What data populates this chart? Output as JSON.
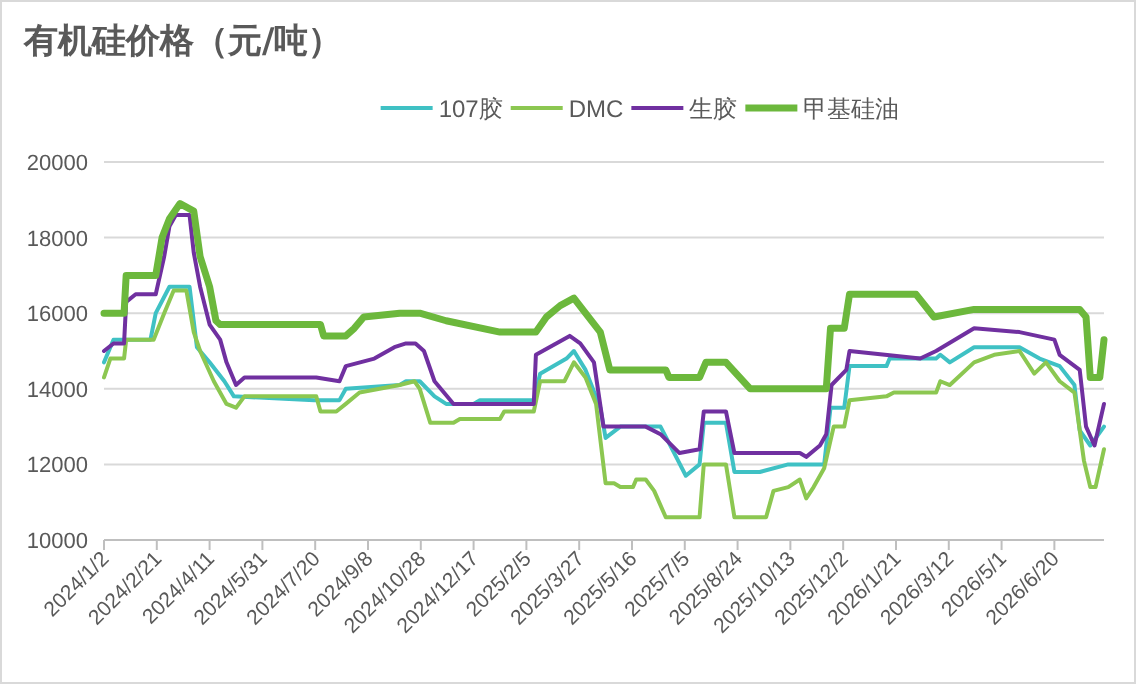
{
  "chart_data": {
    "type": "line",
    "title": "有机硅价格（元/吨）",
    "legend": "top",
    "grid": "y",
    "line_style": "solid",
    "marker": "none",
    "xlim": [
      "2024-01-02",
      "2026-08-06"
    ],
    "xticks": [
      {
        "value": "2024-01-02",
        "label": "2024/1/2"
      },
      {
        "value": "2024-02-21",
        "label": "2024/2/21"
      },
      {
        "value": "2024-04-11",
        "label": "2024/4/11"
      },
      {
        "value": "2024-05-31",
        "label": "2024/5/31"
      },
      {
        "value": "2024-07-20",
        "label": "2024/7/20"
      },
      {
        "value": "2024-09-08",
        "label": "2024/9/8"
      },
      {
        "value": "2024-10-28",
        "label": "2024/10/28"
      },
      {
        "value": "2024-12-17",
        "label": "2024/12/17"
      },
      {
        "value": "2025-02-05",
        "label": "2025/2/5"
      },
      {
        "value": "2025-03-27",
        "label": "2025/3/27"
      },
      {
        "value": "2025-05-16",
        "label": "2025/5/16"
      },
      {
        "value": "2025-07-05",
        "label": "2025/7/5"
      },
      {
        "value": "2025-08-24",
        "label": "2025/8/24"
      },
      {
        "value": "2025-10-13",
        "label": "2025/10/13"
      },
      {
        "value": "2025-12-02",
        "label": "2025/12/2"
      },
      {
        "value": "2026-01-21",
        "label": "2026/1/21"
      },
      {
        "value": "2026-03-12",
        "label": "2026/3/12"
      },
      {
        "value": "2026-05-01",
        "label": "2026/5/1"
      },
      {
        "value": "2026-06-20",
        "label": "2026/6/20"
      }
    ],
    "ylim": [
      10000,
      20000
    ],
    "yticks": [
      10000,
      12000,
      14000,
      16000,
      18000,
      20000
    ],
    "series": [
      {
        "name": "107胶",
        "color": "#3fc1c4",
        "x": [
          "2024-01-02",
          "2024-01-11",
          "2024-02-15",
          "2024-02-20",
          "2024-03-04",
          "2024-03-23",
          "2024-03-30",
          "2024-04-11",
          "2024-04-25",
          "2024-05-04",
          "2024-07-19",
          "2024-08-12",
          "2024-08-18",
          "2024-10-08",
          "2024-10-14",
          "2024-10-27",
          "2024-11-10",
          "2024-11-21",
          "2024-12-17",
          "2024-12-23",
          "2025-02-12",
          "2025-02-18",
          "2025-03-15",
          "2025-03-22",
          "2025-04-02",
          "2025-04-16",
          "2025-04-21",
          "2025-05-05",
          "2025-06-12",
          "2025-06-25",
          "2025-07-06",
          "2025-07-19",
          "2025-07-23",
          "2025-08-13",
          "2025-08-21",
          "2025-09-14",
          "2025-10-11",
          "2025-11-14",
          "2025-11-20",
          "2025-12-03",
          "2025-12-08",
          "2026-01-12",
          "2026-01-15",
          "2026-02-28",
          "2026-03-04",
          "2026-03-13",
          "2026-04-05",
          "2026-05-18",
          "2026-06-06",
          "2026-06-25",
          "2026-07-09",
          "2026-07-14",
          "2026-07-24",
          "2026-08-06"
        ],
        "values": [
          14700,
          15300,
          15300,
          16000,
          16700,
          16700,
          15100,
          14700,
          14200,
          13800,
          13700,
          13700,
          14000,
          14100,
          14200,
          14200,
          13800,
          13600,
          13600,
          13700,
          13700,
          14400,
          14800,
          15000,
          14500,
          13500,
          12700,
          13000,
          13000,
          12300,
          11700,
          12000,
          13100,
          13100,
          11800,
          11800,
          12000,
          12000,
          13500,
          13500,
          14600,
          14600,
          14800,
          14800,
          14900,
          14700,
          15100,
          15100,
          14800,
          14600,
          14100,
          12900,
          12500,
          13000
        ]
      },
      {
        "name": "DMC",
        "color": "#8cc751",
        "x": [
          "2024-01-02",
          "2024-01-08",
          "2024-01-21",
          "2024-01-23",
          "2024-02-18",
          "2024-02-28",
          "2024-03-08",
          "2024-03-20",
          "2024-03-27",
          "2024-04-02",
          "2024-04-15",
          "2024-04-27",
          "2024-05-06",
          "2024-05-14",
          "2024-07-21",
          "2024-07-25",
          "2024-08-09",
          "2024-08-18",
          "2024-08-31",
          "2024-10-08",
          "2024-10-22",
          "2024-10-27",
          "2024-11-06",
          "2024-11-28",
          "2024-12-04",
          "2025-01-11",
          "2025-01-15",
          "2025-02-12",
          "2025-02-18",
          "2025-03-13",
          "2025-03-22",
          "2025-04-02",
          "2025-04-12",
          "2025-04-21",
          "2025-04-29",
          "2025-05-05",
          "2025-05-17",
          "2025-05-20",
          "2025-05-29",
          "2025-06-06",
          "2025-06-17",
          "2025-07-19",
          "2025-07-23",
          "2025-08-13",
          "2025-08-21",
          "2025-09-20",
          "2025-09-27",
          "2025-10-11",
          "2025-10-22",
          "2025-10-28",
          "2025-11-04",
          "2025-11-14",
          "2025-11-23",
          "2025-12-03",
          "2025-12-08",
          "2026-01-12",
          "2026-01-19",
          "2026-02-28",
          "2026-03-04",
          "2026-03-13",
          "2026-04-05",
          "2026-04-24",
          "2026-05-18",
          "2026-06-01",
          "2026-06-12",
          "2026-06-25",
          "2026-07-09",
          "2026-07-18",
          "2026-07-24",
          "2026-07-29",
          "2026-08-06"
        ],
        "values": [
          14300,
          14800,
          14800,
          15300,
          15300,
          16000,
          16600,
          16600,
          15500,
          15000,
          14200,
          13600,
          13500,
          13800,
          13800,
          13400,
          13400,
          13600,
          13900,
          14100,
          14200,
          14000,
          13100,
          13100,
          13200,
          13200,
          13400,
          13400,
          14200,
          14200,
          14700,
          14300,
          13600,
          11500,
          11500,
          11400,
          11400,
          11600,
          11600,
          11300,
          10600,
          10600,
          12000,
          12000,
          10600,
          10600,
          11300,
          11400,
          11600,
          11100,
          11400,
          11900,
          13000,
          13000,
          13700,
          13800,
          13900,
          13900,
          14200,
          14100,
          14700,
          14900,
          15000,
          14400,
          14700,
          14200,
          13900,
          12100,
          11400,
          11400,
          12400
        ]
      },
      {
        "name": "生胶",
        "color": "#7030a0",
        "x": [
          "2024-01-02",
          "2024-01-11",
          "2024-01-21",
          "2024-01-23",
          "2024-02-01",
          "2024-02-20",
          "2024-02-28",
          "2024-03-04",
          "2024-03-10",
          "2024-03-23",
          "2024-03-27",
          "2024-04-02",
          "2024-04-11",
          "2024-04-21",
          "2024-04-27",
          "2024-05-06",
          "2024-05-14",
          "2024-07-21",
          "2024-08-12",
          "2024-08-18",
          "2024-09-14",
          "2024-10-03",
          "2024-10-14",
          "2024-10-23",
          "2024-10-31",
          "2024-11-10",
          "2024-11-28",
          "2025-02-12",
          "2025-02-14",
          "2025-03-18",
          "2025-03-28",
          "2025-04-10",
          "2025-04-19",
          "2025-05-29",
          "2025-06-12",
          "2025-06-30",
          "2025-07-19",
          "2025-07-23",
          "2025-08-13",
          "2025-08-21",
          "2025-10-22",
          "2025-10-28",
          "2025-11-10",
          "2025-11-16",
          "2025-11-21",
          "2025-12-05",
          "2025-12-08",
          "2026-02-13",
          "2026-02-28",
          "2026-04-05",
          "2026-05-18",
          "2026-06-20",
          "2026-06-25",
          "2026-07-14",
          "2026-07-20",
          "2026-07-28",
          "2026-08-06"
        ],
        "values": [
          15000,
          15200,
          15200,
          16300,
          16500,
          16500,
          17500,
          18300,
          18600,
          18600,
          17600,
          16700,
          15700,
          15300,
          14700,
          14100,
          14300,
          14300,
          14200,
          14600,
          14800,
          15100,
          15200,
          15200,
          15000,
          14200,
          13600,
          13600,
          14900,
          15400,
          15200,
          14700,
          13000,
          13000,
          12800,
          12300,
          12400,
          13400,
          13400,
          12300,
          12300,
          12200,
          12500,
          12800,
          14100,
          14500,
          15000,
          14800,
          15000,
          15600,
          15500,
          15300,
          14900,
          14500,
          13000,
          12500,
          13600
        ]
      },
      {
        "name": "甲基硅油",
        "color": "#6cb83c",
        "x": [
          "2024-01-02",
          "2024-01-21",
          "2024-01-23",
          "2024-02-20",
          "2024-02-26",
          "2024-03-04",
          "2024-03-14",
          "2024-03-27",
          "2024-04-02",
          "2024-04-11",
          "2024-04-17",
          "2024-04-21",
          "2024-07-25",
          "2024-07-28",
          "2024-08-18",
          "2024-08-26",
          "2024-09-04",
          "2024-10-08",
          "2024-10-27",
          "2024-11-21",
          "2025-01-11",
          "2025-02-14",
          "2025-02-24",
          "2025-03-09",
          "2025-03-22",
          "2025-04-02",
          "2025-04-16",
          "2025-04-25",
          "2025-06-17",
          "2025-06-20",
          "2025-07-19",
          "2025-07-25",
          "2025-08-13",
          "2025-08-26",
          "2025-09-05",
          "2025-11-16",
          "2025-11-20",
          "2025-12-03",
          "2025-12-08",
          "2026-02-09",
          "2026-02-26",
          "2026-04-05",
          "2026-07-14",
          "2026-07-20",
          "2026-07-24",
          "2026-08-02",
          "2026-08-06"
        ],
        "values": [
          16000,
          16000,
          17000,
          17000,
          18000,
          18500,
          18900,
          18700,
          17500,
          16700,
          15800,
          15700,
          15700,
          15400,
          15400,
          15600,
          15900,
          16000,
          16000,
          15800,
          15500,
          15500,
          15900,
          16200,
          16400,
          16000,
          15500,
          14500,
          14500,
          14300,
          14300,
          14700,
          14700,
          14300,
          14000,
          14000,
          15600,
          15600,
          16500,
          16500,
          15900,
          16100,
          16100,
          15900,
          14300,
          14300,
          15300
        ]
      }
    ]
  }
}
